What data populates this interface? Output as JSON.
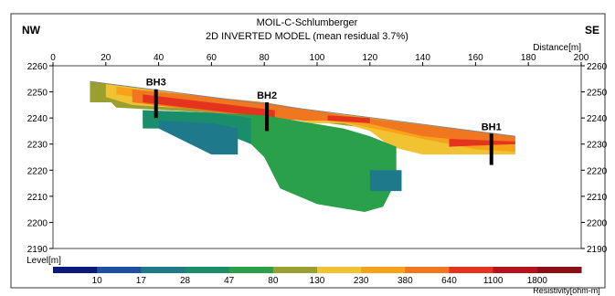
{
  "chart_data": {
    "type": "heatmap",
    "title": "MOIL-C-Schlumberger",
    "subtitle": "2D INVERTED MODEL (mean residual 3.7%)",
    "left_corner": "NW",
    "right_corner": "SE",
    "xlabel": "Distance[m]",
    "ylabel": "Level[m]",
    "xlim": [
      0,
      200
    ],
    "ylim": [
      2190,
      2260
    ],
    "x_ticks": [
      0,
      20,
      40,
      60,
      80,
      100,
      120,
      140,
      160,
      180,
      200
    ],
    "y_ticks": [
      2260,
      2250,
      2240,
      2230,
      2220,
      2210,
      2200,
      2190
    ],
    "colorbar": {
      "title": "Resistivity[ohm-m]",
      "tick_labels": [
        "10",
        "17",
        "28",
        "47",
        "80",
        "130",
        "230",
        "380",
        "640",
        "1100",
        "1800"
      ],
      "colors": [
        "#0b1a7a",
        "#1f4fa3",
        "#1e7a8a",
        "#1a8e6a",
        "#2aa04a",
        "#9aa030",
        "#f1c232",
        "#f7a21b",
        "#f0761f",
        "#e5341d",
        "#b5121b",
        "#8c0f16"
      ]
    },
    "boreholes": [
      {
        "name": "BH3",
        "x": 39,
        "top": 2251,
        "bottom": 2240
      },
      {
        "name": "BH2",
        "x": 81,
        "top": 2246,
        "bottom": 2235
      },
      {
        "name": "BH1",
        "x": 166,
        "top": 2234,
        "bottom": 2222
      }
    ],
    "surface_line": [
      [
        14,
        2254
      ],
      [
        175,
        2233
      ]
    ],
    "bands": [
      {
        "color": "#9aa030",
        "upper": [
          [
            14,
            2254
          ],
          [
            175,
            2233
          ]
        ],
        "lower": [
          [
            14,
            2246
          ],
          [
            22,
            2246
          ],
          [
            24,
            2244
          ],
          [
            60,
            2242
          ],
          [
            80,
            2241
          ],
          [
            120,
            2236
          ],
          [
            175,
            2226
          ]
        ]
      },
      {
        "color": "#f1c232",
        "upper": [
          [
            20,
            2253
          ],
          [
            175,
            2233
          ]
        ],
        "lower": [
          [
            20,
            2248
          ],
          [
            30,
            2245
          ],
          [
            60,
            2243
          ],
          [
            80,
            2242
          ],
          [
            98,
            2238
          ],
          [
            110,
            2238
          ],
          [
            120,
            2235
          ],
          [
            128,
            2229
          ],
          [
            140,
            2226
          ],
          [
            175,
            2226
          ]
        ]
      },
      {
        "color": "#f7a21b",
        "upper": [
          [
            24,
            2252
          ],
          [
            175,
            2233
          ]
        ],
        "lower": [
          [
            24,
            2249
          ],
          [
            40,
            2247
          ],
          [
            60,
            2245
          ],
          [
            80,
            2243
          ],
          [
            95,
            2240
          ],
          [
            112,
            2238
          ],
          [
            140,
            2232
          ],
          [
            160,
            2228
          ],
          [
            175,
            2227
          ]
        ]
      },
      {
        "color": "#f0761f",
        "upper": [
          [
            30,
            2251
          ],
          [
            80,
            2246
          ],
          [
            110,
            2241
          ],
          [
            175,
            2233
          ]
        ],
        "lower": [
          [
            30,
            2246
          ],
          [
            80,
            2240
          ],
          [
            95,
            2239
          ],
          [
            115,
            2239
          ],
          [
            140,
            2233
          ],
          [
            160,
            2231
          ],
          [
            175,
            2230
          ]
        ]
      },
      {
        "color": "#e5341d",
        "upper": [
          [
            34,
            2249
          ],
          [
            84,
            2243
          ]
        ],
        "lower": [
          [
            34,
            2246
          ],
          [
            84,
            2240
          ]
        ]
      },
      {
        "color": "#e5341d",
        "upper": [
          [
            104,
            2241
          ],
          [
            120,
            2240
          ]
        ],
        "lower": [
          [
            104,
            2239
          ],
          [
            120,
            2238
          ]
        ]
      },
      {
        "color": "#e5341d",
        "upper": [
          [
            150,
            2232
          ],
          [
            175,
            2231
          ]
        ],
        "lower": [
          [
            150,
            2229
          ],
          [
            175,
            2230
          ]
        ]
      },
      {
        "color": "#2aa04a",
        "upper": [
          [
            34,
            2243
          ],
          [
            60,
            2242
          ],
          [
            80,
            2241
          ],
          [
            98,
            2238
          ],
          [
            110,
            2236
          ],
          [
            120,
            2233
          ],
          [
            130,
            2229
          ]
        ],
        "lower": [
          [
            34,
            2238
          ],
          [
            60,
            2237
          ],
          [
            75,
            2230
          ],
          [
            80,
            2225
          ],
          [
            86,
            2213
          ],
          [
            100,
            2207
          ],
          [
            118,
            2204
          ],
          [
            125,
            2206
          ],
          [
            130,
            2216
          ]
        ]
      },
      {
        "color": "#1a8e6a",
        "upper": [
          [
            34,
            2243
          ],
          [
            60,
            2242
          ],
          [
            75,
            2240
          ]
        ],
        "lower": [
          [
            34,
            2236
          ],
          [
            60,
            2236
          ],
          [
            75,
            2230
          ]
        ]
      },
      {
        "color": "#1e7a8a",
        "upper": [
          [
            40,
            2239
          ],
          [
            60,
            2238
          ],
          [
            70,
            2236
          ]
        ],
        "lower": [
          [
            40,
            2236
          ],
          [
            60,
            2226
          ],
          [
            70,
            2226
          ]
        ]
      },
      {
        "color": "#1e7a8a",
        "upper": [
          [
            120,
            2220
          ],
          [
            132,
            2220
          ]
        ],
        "lower": [
          [
            120,
            2212
          ],
          [
            132,
            2212
          ]
        ]
      }
    ]
  }
}
